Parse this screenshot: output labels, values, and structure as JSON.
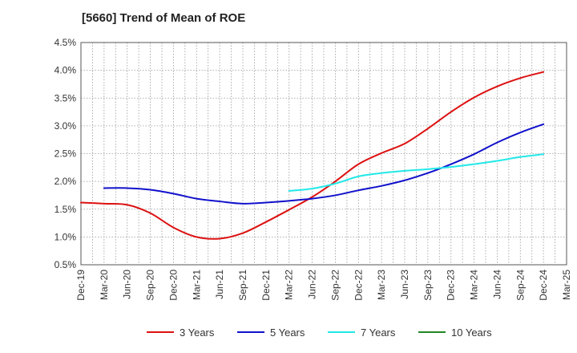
{
  "chart_data": {
    "type": "line",
    "title": "[5660]  Trend of Mean of ROE",
    "xlabel": "",
    "ylabel": "",
    "grid": true,
    "legend_position": "bottom",
    "x": [
      "Dec-19",
      "Mar-20",
      "Jun-20",
      "Sep-20",
      "Dec-20",
      "Mar-21",
      "Jun-21",
      "Sep-21",
      "Dec-21",
      "Mar-22",
      "Jun-22",
      "Sep-22",
      "Dec-22",
      "Mar-23",
      "Jun-23",
      "Sep-23",
      "Dec-23",
      "Mar-24",
      "Jun-24",
      "Sep-24",
      "Dec-24",
      "Mar-25"
    ],
    "ylim": [
      0.5,
      4.5
    ],
    "y_ticks": [
      "0.5%",
      "1.0%",
      "1.5%",
      "2.0%",
      "2.5%",
      "3.0%",
      "3.5%",
      "4.0%",
      "4.5%"
    ],
    "y_tick_values": [
      0.5,
      1.0,
      1.5,
      2.0,
      2.5,
      3.0,
      3.5,
      4.0,
      4.5
    ],
    "series": [
      {
        "name": "3 Years",
        "color": "#dd1111",
        "values": [
          1.62,
          1.6,
          1.58,
          1.43,
          1.17,
          1.0,
          0.97,
          1.07,
          1.27,
          1.49,
          1.72,
          2.0,
          2.31,
          2.51,
          2.68,
          2.95,
          3.25,
          3.51,
          3.71,
          3.86,
          3.97,
          null
        ]
      },
      {
        "name": "5 Years",
        "color": "#1111cc",
        "values": [
          null,
          1.88,
          1.88,
          1.85,
          1.78,
          1.69,
          1.64,
          1.6,
          1.62,
          1.65,
          1.69,
          1.75,
          1.84,
          1.92,
          2.02,
          2.15,
          2.31,
          2.49,
          2.7,
          2.88,
          3.03,
          null
        ]
      },
      {
        "name": "7 Years",
        "color": "#22e8e8",
        "values": [
          null,
          null,
          null,
          null,
          null,
          null,
          null,
          null,
          null,
          1.83,
          1.87,
          1.96,
          2.09,
          2.15,
          2.19,
          2.22,
          2.26,
          2.31,
          2.37,
          2.44,
          2.49,
          null
        ]
      },
      {
        "name": "10 Years",
        "color": "#228822",
        "values": [
          null,
          null,
          null,
          null,
          null,
          null,
          null,
          null,
          null,
          null,
          null,
          null,
          null,
          null,
          null,
          null,
          null,
          null,
          null,
          null,
          null,
          null
        ]
      }
    ]
  }
}
